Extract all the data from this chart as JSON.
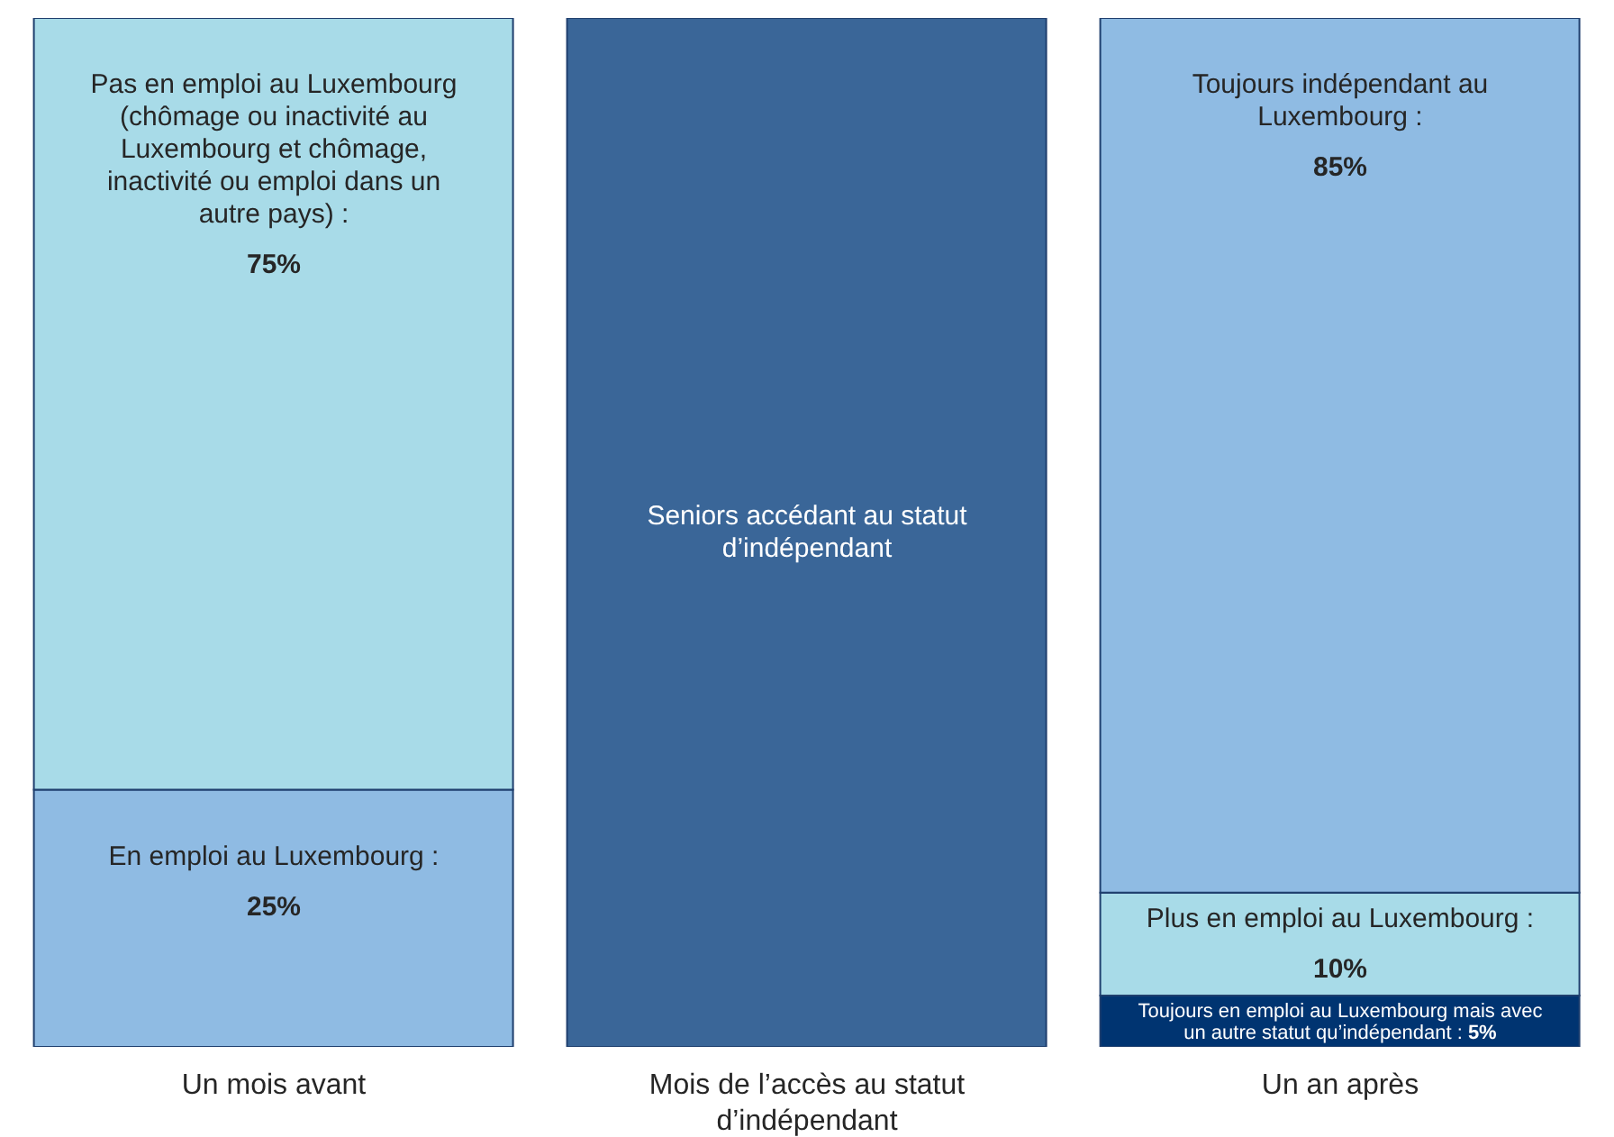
{
  "chart_data": {
    "type": "bar",
    "stacked": true,
    "categories": [
      "Un mois avant",
      "Mois de l’accès au statut d’indépendant",
      "Un an après"
    ],
    "ylim": [
      0,
      100
    ],
    "tick_labels": "x",
    "series": [
      {
        "name": "En emploi au Luxembourg :",
        "color": "#8fbbe3",
        "values": [
          25,
          null,
          null
        ],
        "value_labels": [
          "25%",
          null,
          null
        ]
      },
      {
        "name": "Pas en emploi au Luxembourg (chômage ou inactivité au Luxembourg et chômage, inactivité ou emploi dans un autre pays) :",
        "color": "#a8dbe8",
        "values": [
          75,
          null,
          null
        ],
        "value_labels": [
          "75%",
          null,
          null
        ]
      },
      {
        "name": "Seniors accédant au statut d’indépendant",
        "color": "#3a6698",
        "values": [
          null,
          100,
          null
        ]
      },
      {
        "name": "Toujours en emploi au Luxembourg mais avec un autre statut qu’indépendant :",
        "color": "#003471",
        "values": [
          null,
          null,
          5
        ],
        "value_labels": [
          null,
          null,
          "5%"
        ]
      },
      {
        "name": "Plus en emploi au Luxembourg :",
        "color": "#a8dbe8",
        "values": [
          null,
          null,
          10
        ],
        "value_labels": [
          null,
          null,
          "10%"
        ]
      },
      {
        "name": "Toujours indépendant au Luxembourg :",
        "color": "#8fbbe3",
        "values": [
          null,
          null,
          85
        ],
        "value_labels": [
          null,
          null,
          "85%"
        ]
      }
    ]
  }
}
